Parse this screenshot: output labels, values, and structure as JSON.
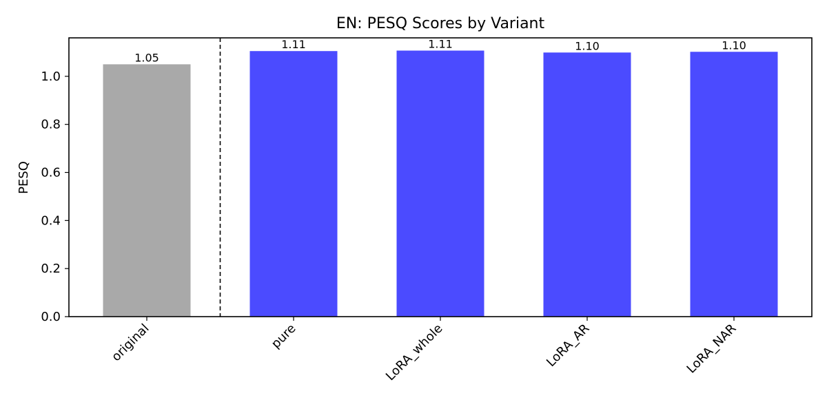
{
  "chart_data": {
    "type": "bar",
    "title": "EN: PESQ Scores by Variant",
    "xlabel": "",
    "ylabel": "PESQ",
    "categories": [
      "original",
      "pure",
      "LoRA_whole",
      "LoRA_AR",
      "LoRA_NAR"
    ],
    "values": [
      1.05,
      1.105,
      1.107,
      1.099,
      1.102
    ],
    "value_labels": [
      "1.05",
      "1.11",
      "1.11",
      "1.10",
      "1.10"
    ],
    "bar_colors": [
      "#a9a9a9",
      "#4b4bff",
      "#4b4bff",
      "#4b4bff",
      "#4b4bff"
    ],
    "ylim": [
      0,
      1.16
    ],
    "yticks": [
      0.0,
      0.2,
      0.4,
      0.6,
      0.8,
      1.0
    ],
    "ytick_labels": [
      "0.0",
      "0.2",
      "0.4",
      "0.6",
      "0.8",
      "1.0"
    ],
    "separator_after_category": "original",
    "separator_style": "dashed",
    "grid": false,
    "legend": "none"
  }
}
